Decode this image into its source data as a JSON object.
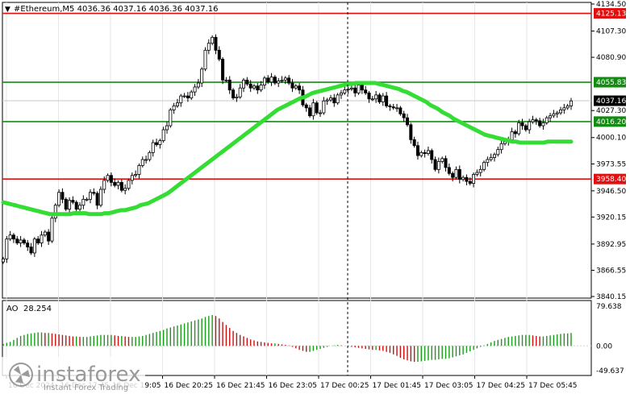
{
  "chart_data": {
    "type": "candlestick",
    "symbol_header": "#Ethereum,M5  4036.36 4037.16 4036.36 4037.16",
    "y_ticks": [
      "4134.50",
      "4107.30",
      "4080.90",
      "4027.30",
      "4000.10",
      "3973.55",
      "3946.50",
      "3920.15",
      "3892.95",
      "3866.55",
      "3840.15"
    ],
    "x_ticks": [
      "16 Dec 2024",
      "16 Dec 17:45",
      "16 Dec 19:05",
      "16 Dec 20:25",
      "16 Dec 21:45",
      "16 Dec 23:05",
      "17 Dec 00:25",
      "17 Dec 01:45",
      "17 Dec 03:05",
      "17 Dec 04:25",
      "17 Dec 05:45"
    ],
    "ylim": [
      3840.15,
      4134.5
    ],
    "horizontal_levels": [
      {
        "value": 4125.13,
        "label": "4125.13",
        "color": "#e01010"
      },
      {
        "value": 4055.83,
        "label": "4055.83",
        "color": "#148c14"
      },
      {
        "value": 4016.2,
        "label": "4016.20",
        "color": "#148c14"
      },
      {
        "value": 3958.4,
        "label": "3958.40",
        "color": "#e01010"
      }
    ],
    "current_price": {
      "value": 4037.16,
      "label": "4037.16"
    },
    "closes": [
      3878,
      3898,
      3902,
      3898,
      3894,
      3897,
      3894,
      3890,
      3884,
      3898,
      3894,
      3902,
      3905,
      3896,
      3919,
      3932,
      3945,
      3938,
      3928,
      3937,
      3935,
      3928,
      3932,
      3938,
      3938,
      3945,
      3944,
      3932,
      3948,
      3957,
      3962,
      3955,
      3952,
      3955,
      3947,
      3949,
      3957,
      3962,
      3963,
      3972,
      3978,
      3978,
      3985,
      3995,
      3993,
      3997,
      4008,
      4012,
      4028,
      4032,
      4035,
      4042,
      4042,
      4040,
      4046,
      4051,
      4055,
      4069,
      4088,
      4095,
      4101,
      4088,
      4079,
      4058,
      4058,
      4048,
      4040,
      4041,
      4050,
      4058,
      4054,
      4050,
      4052,
      4048,
      4053,
      4060,
      4056,
      4061,
      4055,
      4057,
      4058,
      4060,
      4055,
      4050,
      4052,
      4048,
      4033,
      4030,
      4022,
      4035,
      4025,
      4025,
      4037,
      4038,
      4040,
      4035,
      4043,
      4045,
      4048,
      4049,
      4050,
      4045,
      4053,
      4048,
      4045,
      4039,
      4039,
      4043,
      4036,
      4042,
      4032,
      4031,
      4030,
      4030,
      4024,
      4020,
      4013,
      3998,
      3992,
      3982,
      3985,
      3984,
      3987,
      3978,
      3968,
      3976,
      3979,
      3970,
      3964,
      3960,
      3968,
      3958,
      3960,
      3956,
      3954,
      3963,
      3965,
      3968,
      3975,
      3978,
      3980,
      3983,
      3988,
      3994,
      3996,
      3998,
      4006,
      4004,
      4015,
      4012,
      4008,
      4016,
      4018,
      4017,
      4012,
      4015,
      4020,
      4022,
      4024,
      4025,
      4028,
      4030,
      4032,
      4037
    ],
    "ma_values": [
      3935,
      3934,
      3933,
      3932,
      3931,
      3930,
      3929,
      3928,
      3927,
      3926,
      3925,
      3924,
      3923,
      3923,
      3923,
      3923,
      3923,
      3923,
      3924,
      3924,
      3924,
      3924,
      3923,
      3923,
      3923,
      3923,
      3924,
      3924,
      3925,
      3926,
      3927,
      3927,
      3928,
      3929,
      3930,
      3932,
      3933,
      3934,
      3936,
      3938,
      3940,
      3942,
      3944,
      3947,
      3950,
      3953,
      3956,
      3959,
      3962,
      3965,
      3968,
      3971,
      3974,
      3977,
      3980,
      3983,
      3986,
      3989,
      3992,
      3995,
      3998,
      4001,
      4004,
      4007,
      4010,
      4013,
      4016,
      4019,
      4022,
      4025,
      4028,
      4030,
      4032,
      4034,
      4036,
      4038,
      4040,
      4041,
      4043,
      4045,
      4046,
      4047,
      4048,
      4049,
      4050,
      4051,
      4052,
      4053,
      4054,
      4054,
      4055,
      4055,
      4055,
      4055,
      4055,
      4055,
      4054,
      4053,
      4052,
      4051,
      4050,
      4049,
      4047,
      4046,
      4044,
      4042,
      4040,
      4038,
      4036,
      4033,
      4031,
      4029,
      4026,
      4024,
      4022,
      4019,
      4017,
      4015,
      4013,
      4011,
      4009,
      4007,
      4005,
      4003,
      4002,
      4001,
      4000,
      3999,
      3998,
      3997,
      3996,
      3996,
      3995,
      3995,
      3995,
      3995,
      3995,
      3995,
      3995,
      3996,
      3996,
      3996,
      3996,
      3996,
      3996,
      3996
    ],
    "indicator": {
      "name": "AO",
      "value_label": "28.254",
      "y_ticks": [
        "79.638",
        "0.00",
        "-49.637"
      ],
      "ylim": [
        -49.637,
        79.638
      ],
      "values": [
        4,
        6,
        8,
        12,
        16,
        20,
        22,
        24,
        25,
        26,
        27,
        27,
        26,
        26,
        25,
        24,
        23,
        22,
        21,
        20,
        19,
        19,
        18,
        18,
        18,
        19,
        20,
        21,
        22,
        22,
        22,
        22,
        21,
        20,
        20,
        19,
        18,
        18,
        18,
        19,
        20,
        22,
        24,
        26,
        28,
        30,
        32,
        35,
        37,
        39,
        41,
        43,
        45,
        47,
        49,
        51,
        53,
        55,
        58,
        60,
        62,
        60,
        55,
        48,
        42,
        36,
        30,
        26,
        22,
        19,
        16,
        13,
        11,
        9,
        8,
        7,
        6,
        5,
        5,
        4,
        3,
        2,
        1,
        -2,
        -5,
        -8,
        -10,
        -12,
        -12,
        -10,
        -8,
        -6,
        -4,
        -2,
        0,
        1,
        2,
        1,
        0,
        -1,
        -2,
        -3,
        -4,
        -5,
        -6,
        -7,
        -8,
        -8,
        -9,
        -10,
        -12,
        -14,
        -17,
        -20,
        -24,
        -27,
        -29,
        -31,
        -32,
        -32,
        -31,
        -30,
        -29,
        -28,
        -28,
        -27,
        -26,
        -26,
        -25,
        -23,
        -21,
        -19,
        -17,
        -14,
        -11,
        -8,
        -5,
        -2,
        1,
        4,
        7,
        10,
        12,
        14,
        16,
        18,
        19,
        20,
        21,
        22,
        22,
        22,
        21,
        20,
        19,
        19,
        20,
        21,
        22,
        23,
        24,
        25,
        25,
        26
      ]
    }
  },
  "watermark": {
    "logo_text": "instaforex",
    "tagline": "Instant Forex Trading"
  },
  "colors": {
    "support_resistance_green": "#148c14",
    "support_resistance_red": "#e01010",
    "moving_average": "#33dd33",
    "ao_up": "#1a9a1a",
    "ao_down": "#cc1010",
    "candle": "#000000"
  }
}
